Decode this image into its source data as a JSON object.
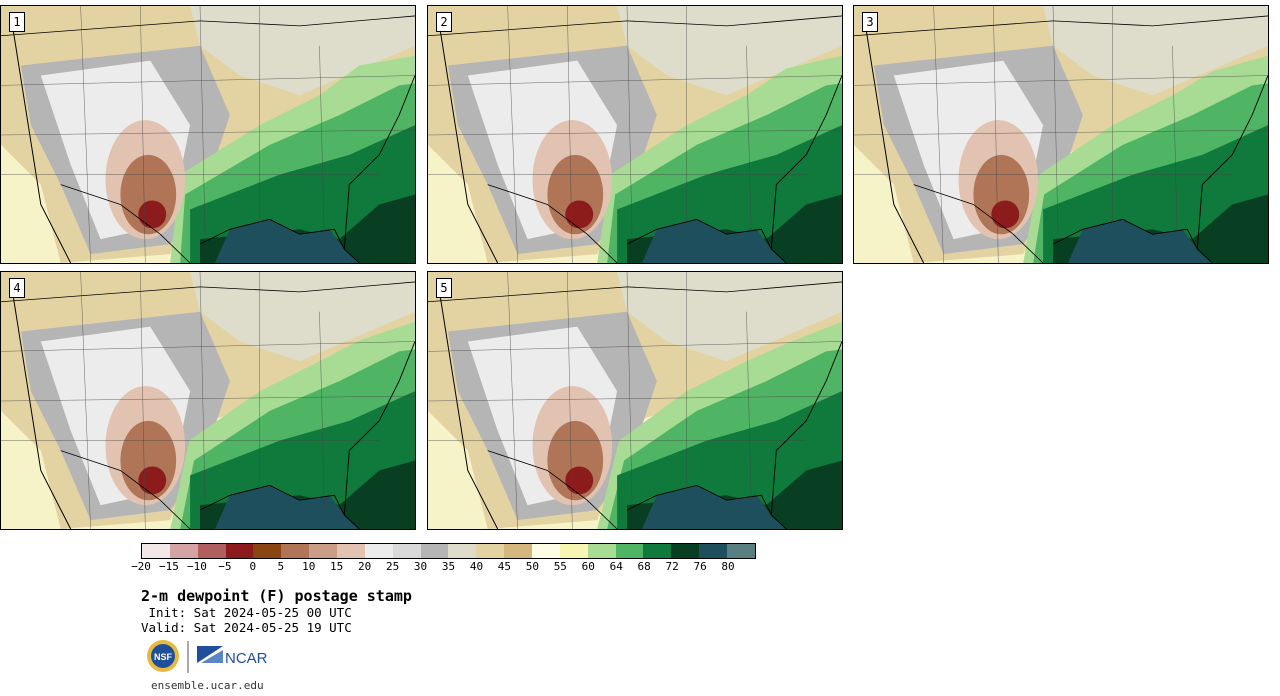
{
  "panels": [
    {
      "label": "1"
    },
    {
      "label": "2"
    },
    {
      "label": "3"
    },
    {
      "label": "4"
    },
    {
      "label": "5"
    }
  ],
  "colorbar": {
    "colors": [
      "#f3e8e8",
      "#d4a3a3",
      "#b05e5e",
      "#8c1c1c",
      "#8a4512",
      "#b07456",
      "#c99d86",
      "#e2c3b1",
      "#ececec",
      "#d9d9d9",
      "#b5b5b5",
      "#dedccb",
      "#e4d3a2",
      "#d3b77c",
      "#fdfde5",
      "#f6f6b2",
      "#a8db94",
      "#4fb565",
      "#0f7a3c",
      "#083f22",
      "#1e4f5c",
      "#5a7f83"
    ],
    "tick_labels": [
      "−20",
      "−15",
      "−10",
      "−5",
      "0",
      "5",
      "10",
      "15",
      "20",
      "25",
      "30",
      "35",
      "40",
      "45",
      "50",
      "55",
      "60",
      "64",
      "68",
      "72",
      "76",
      "80"
    ]
  },
  "title": "2-m dewpoint (F) postage stamp",
  "init": " Init: Sat 2024-05-25 00 UTC",
  "valid": "Valid: Sat 2024-05-25 19 UTC",
  "logo": {
    "nsf_text": "NSF",
    "ncar_text": "NCAR"
  },
  "url": "ensemble.ucar.edu"
}
